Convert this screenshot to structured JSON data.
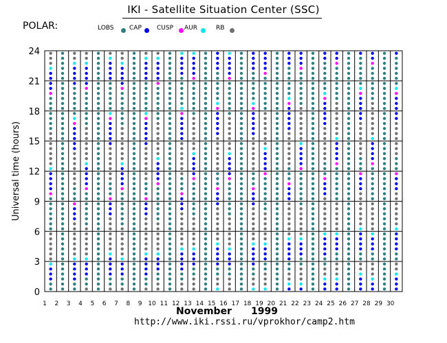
{
  "header": {
    "title": "IKI - Satellite Situation Center (SSC)",
    "satellite": "POLAR:"
  },
  "legend": [
    {
      "label": "LOBS",
      "color": "#2e7d7f"
    },
    {
      "label": "CAP",
      "color": "#0000ee"
    },
    {
      "label": "CUSP",
      "color": "#ff00ff"
    },
    {
      "label": "AUR",
      "color": "#00e5ee"
    },
    {
      "label": "RB",
      "color": "#707070"
    }
  ],
  "footer": {
    "month": "November",
    "year": "1999",
    "url": "http://www.iki.rssi.ru/vprokhor/camp2.htm"
  },
  "chart_data": {
    "type": "scatter",
    "ylabel": "Universal time (hours)",
    "xlabel": "",
    "ylim": [
      0,
      24
    ],
    "yticks": [
      0,
      3,
      6,
      9,
      12,
      15,
      18,
      21,
      24
    ],
    "days": [
      1,
      2,
      3,
      4,
      5,
      6,
      7,
      8,
      9,
      10,
      11,
      12,
      13,
      14,
      15,
      16,
      17,
      18,
      19,
      20,
      21,
      22,
      23,
      24,
      25,
      26,
      27,
      28,
      29,
      30
    ],
    "sample_step_hours": 0.5,
    "region_colors": {
      "LOBS": "#2e7d7f",
      "CAP": "#0000ee",
      "CUSP": "#ff00ff",
      "AUR": "#00e5ee",
      "RB": "#707070"
    },
    "orbit": {
      "pattern_days": 3,
      "offset_hours": 0.35
    },
    "profiles": [
      [
        [
          "RB",
          22.5,
          24
        ],
        [
          "AUR",
          22,
          22.5
        ],
        [
          "CAP",
          20,
          22
        ],
        [
          "CUSP",
          19.5,
          20
        ],
        [
          "LOBS",
          16,
          19.5
        ],
        [
          "RB",
          12.5,
          16
        ],
        [
          "AUR",
          12,
          12.5
        ],
        [
          "CAP",
          10,
          12
        ],
        [
          "CUSP",
          9.5,
          10
        ],
        [
          "LOBS",
          6,
          9.5
        ],
        [
          "RB",
          3,
          6
        ],
        [
          "AUR",
          2.5,
          3
        ],
        [
          "CAP",
          1,
          2.5
        ]
      ],
      [
        [
          "LOBS",
          0,
          24
        ]
      ],
      [
        [
          "RB",
          23,
          24
        ],
        [
          "AUR",
          22.5,
          23
        ],
        [
          "CAP",
          20.5,
          22.5
        ],
        [
          "LOBS",
          17.5,
          20.5
        ],
        [
          "AUR",
          17,
          17.5
        ],
        [
          "CUSP",
          16.5,
          17
        ],
        [
          "CAP",
          14,
          16.5
        ],
        [
          "RB",
          10.5,
          14
        ],
        [
          "CUSP",
          8.5,
          9
        ],
        [
          "CAP",
          7,
          8.5
        ],
        [
          "RB",
          3.5,
          7
        ],
        [
          "AUR",
          3,
          3.5
        ],
        [
          "CAP",
          1,
          3
        ]
      ]
    ]
  }
}
